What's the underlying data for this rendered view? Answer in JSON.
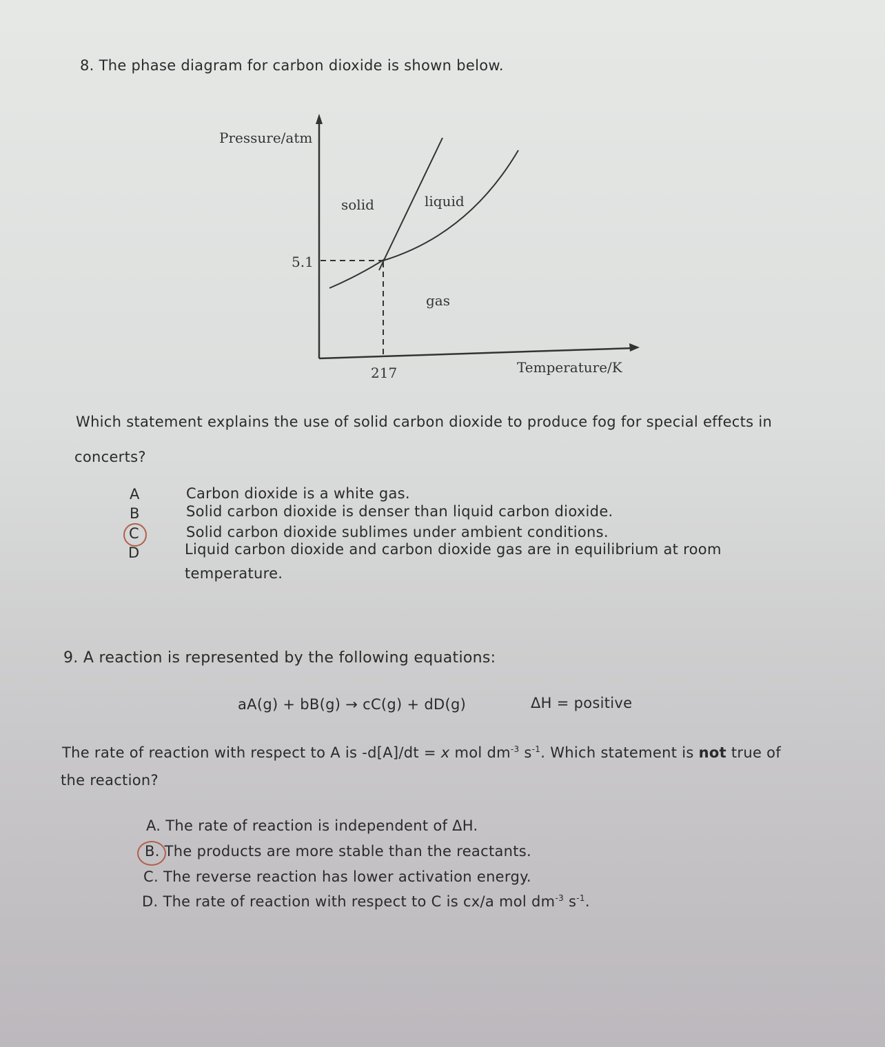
{
  "q8": {
    "number": "8.",
    "stem": "The phase diagram for carbon dioxide is shown below.",
    "figure": {
      "y_label": "Pressure/atm",
      "x_label": "Temperature/K",
      "solid": "solid",
      "liquid": "liquid",
      "gas": "gas",
      "pressure_mark": "5.1",
      "temperature_mark": "217"
    },
    "question": [
      "Which statement explains the use of solid carbon dioxide to produce fog for special effects in",
      "concerts?"
    ],
    "options": [
      {
        "letter": "A",
        "text": "Carbon dioxide is a white gas."
      },
      {
        "letter": "B",
        "text": "Solid carbon dioxide is denser than liquid carbon dioxide."
      },
      {
        "letter": "C",
        "text": "Solid carbon dioxide sublimes under ambient conditions."
      },
      {
        "letter": "D",
        "text": "Liquid carbon dioxide and carbon dioxide gas are in equilibrium at room",
        "text2": "temperature."
      }
    ]
  },
  "q9": {
    "number": "9.",
    "stem": "A reaction is represented by the following equations:",
    "equation": "aA(g) + bB(g) → cC(g) + dD(g)",
    "enthalpy": "ΔH = positive",
    "question": [
      "The rate of reaction with respect to A is -d[A]/dt = ",
      "x",
      " mol dm",
      "-3",
      " s",
      "-1",
      ". Which statement is ",
      "not",
      " true of",
      "the reaction?"
    ],
    "options": [
      {
        "letter": "A.",
        "text": [
          "The rate of reaction is independent of ΔH."
        ]
      },
      {
        "letter": "B.",
        "text": [
          "The products are more stable than the reactants."
        ]
      },
      {
        "letter": "C.",
        "text": [
          "The reverse reaction has lower activation energy."
        ]
      },
      {
        "letter": "D.",
        "text": [
          "The rate of reaction with respect to C is cx/a mol dm",
          "-3",
          " s",
          "-1",
          "."
        ]
      }
    ]
  }
}
